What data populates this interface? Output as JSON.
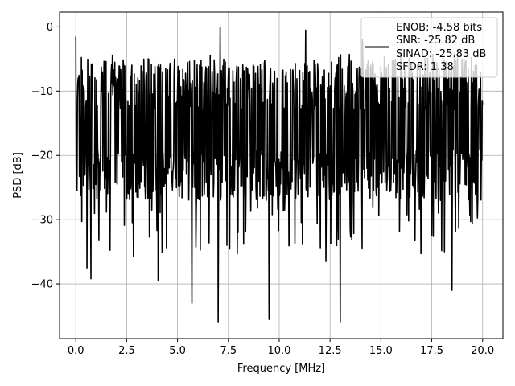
{
  "chart_data": {
    "type": "line",
    "title": "",
    "xlabel": "Frequency [MHz]",
    "ylabel": "PSD [dB]",
    "xlim": [
      -0.8,
      21.0
    ],
    "ylim": [
      -48.5,
      2.3
    ],
    "x_ticks": [
      0.0,
      2.5,
      5.0,
      7.5,
      10.0,
      12.5,
      15.0,
      17.5,
      20.0
    ],
    "x_tick_labels": [
      "0.0",
      "2.5",
      "5.0",
      "7.5",
      "10.0",
      "12.5",
      "15.0",
      "17.5",
      "20.0"
    ],
    "y_ticks": [
      0,
      -10,
      -20,
      -30,
      -40
    ],
    "y_tick_labels": [
      "0",
      "−10",
      "−20",
      "−30",
      "−40"
    ],
    "grid": true,
    "legend_position": "top-right",
    "series": [
      {
        "name": "",
        "color": "#000000",
        "points": 1024,
        "x_range": [
          0.0,
          20.0
        ],
        "typical_band": [
          -27,
          -5
        ],
        "notable_peaks": [
          {
            "x": 0.0,
            "y": -1.5
          },
          {
            "x": 7.1,
            "y": 0.0
          },
          {
            "x": 11.3,
            "y": -0.5
          },
          {
            "x": 14.1,
            "y": -2.0
          }
        ],
        "notable_dips": [
          {
            "x": 0.55,
            "y": -37.5
          },
          {
            "x": 0.75,
            "y": -39.2
          },
          {
            "x": 4.05,
            "y": -39.5
          },
          {
            "x": 5.7,
            "y": -43.0
          },
          {
            "x": 7.0,
            "y": -46.0
          },
          {
            "x": 9.5,
            "y": -45.5
          },
          {
            "x": 13.0,
            "y": -46.0
          },
          {
            "x": 18.5,
            "y": -41.0
          },
          {
            "x": 12.3,
            "y": -36.5
          }
        ]
      }
    ],
    "legend_entries": [
      "ENOB: -4.58 bits",
      "SNR: -25.82 dB",
      "SINAD: -25.83 dB",
      "SFDR: 1.38"
    ]
  },
  "colors": {
    "line": "#000000",
    "grid": "#b0b0b0",
    "axes": "#000000",
    "background": "#ffffff"
  }
}
